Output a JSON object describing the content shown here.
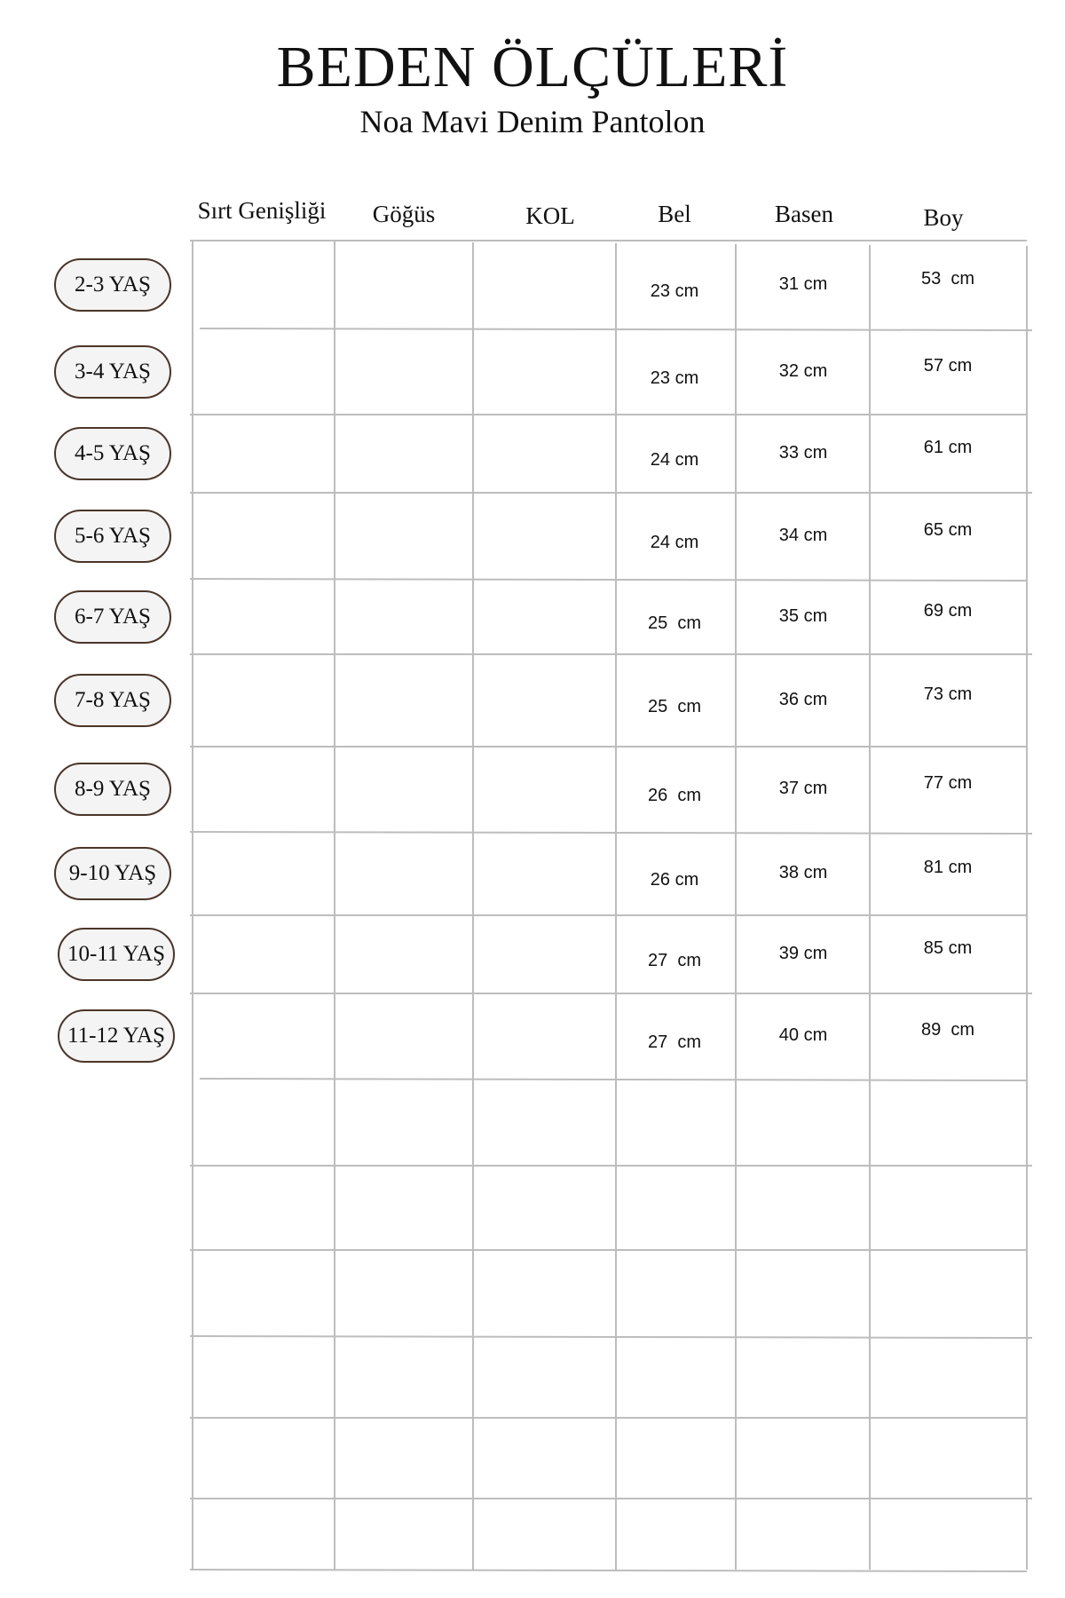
{
  "title": "BEDEN ÖLÇÜLERİ",
  "subtitle": "Noa Mavi Denim Pantolon",
  "columns": [
    "Sırt Genişliği",
    "Göğüs",
    "KOL",
    "Bel",
    "Basen",
    "Boy"
  ],
  "rows": [
    {
      "size": "2-3 YAŞ",
      "bel": "23 cm",
      "basen": "31 cm",
      "boy": "53  cm"
    },
    {
      "size": "3-4 YAŞ",
      "bel": "23 cm",
      "basen": "32 cm",
      "boy": "57 cm"
    },
    {
      "size": "4-5 YAŞ",
      "bel": "24 cm",
      "basen": "33 cm",
      "boy": "61 cm"
    },
    {
      "size": "5-6 YAŞ",
      "bel": "24 cm",
      "basen": "34 cm",
      "boy": "65 cm"
    },
    {
      "size": "6-7 YAŞ",
      "bel": "25  cm",
      "basen": "35 cm",
      "boy": "69 cm"
    },
    {
      "size": "7-8 YAŞ",
      "bel": "25  cm",
      "basen": "36 cm",
      "boy": "73 cm"
    },
    {
      "size": "8-9 YAŞ",
      "bel": "26  cm",
      "basen": "37 cm",
      "boy": "77 cm"
    },
    {
      "size": "9-10 YAŞ",
      "bel": "26 cm",
      "basen": "38 cm",
      "boy": "81 cm"
    },
    {
      "size": "10-11 YAŞ",
      "bel": "27  cm",
      "basen": "39 cm",
      "boy": "85 cm"
    },
    {
      "size": "11-12 YAŞ",
      "bel": "27  cm",
      "basen": "40 cm",
      "boy": "89  cm"
    }
  ],
  "colors": {
    "grid": "#bdbdbd",
    "pill_border": "#4a3528",
    "pill_fill": "#f4f4f4"
  }
}
